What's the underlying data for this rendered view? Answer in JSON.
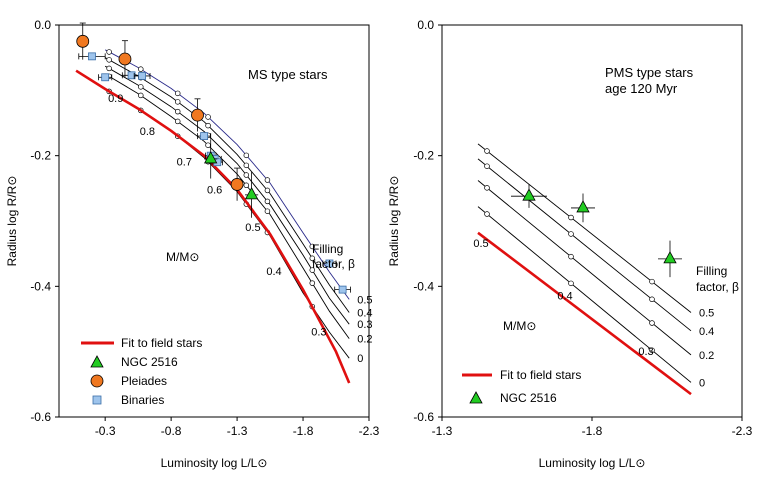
{
  "chart_data": [
    {
      "type": "line",
      "title": "MS type stars",
      "xlabel": "Luminosity log L/L⊙",
      "ylabel": "Radius log R/R⊙",
      "xlim": [
        0.05,
        -2.3
      ],
      "ylim": [
        -0.6,
        0.0
      ],
      "xticks": [
        -0.3,
        -0.8,
        -1.3,
        -1.8,
        -2.3
      ],
      "xtick_labels": [
        "-0.3",
        "-0.8",
        "-1.3",
        "-1.8",
        "-2.3"
      ],
      "yticks": [
        0.0,
        -0.2,
        -0.4,
        -0.6
      ],
      "ytick_labels": [
        "0.0",
        "-0.2",
        "-0.4",
        "-0.6"
      ],
      "fit_line": {
        "name": "Fit to field stars",
        "color": "#e01010",
        "x": [
          -0.08,
          -0.3,
          -0.55,
          -0.8,
          -1.05,
          -1.3,
          -1.55,
          -1.8,
          -2.05,
          -2.15
        ],
        "y": [
          -0.07,
          -0.098,
          -0.128,
          -0.162,
          -0.2,
          -0.252,
          -0.32,
          -0.405,
          -0.5,
          -0.548
        ]
      },
      "filling_lines": [
        {
          "label": "0",
          "color": "#000000",
          "x": [
            -0.3,
            -0.55,
            -0.8,
            -1.05,
            -1.3,
            -1.55,
            -1.8,
            -2.0,
            -2.15
          ],
          "y": [
            -0.098,
            -0.128,
            -0.162,
            -0.203,
            -0.255,
            -0.323,
            -0.41,
            -0.47,
            -0.51
          ]
        },
        {
          "label": "0.2",
          "color": "#000000",
          "x": [
            -0.3,
            -0.55,
            -0.8,
            -1.05,
            -1.3,
            -1.55,
            -1.8,
            -2.0,
            -2.15
          ],
          "y": [
            -0.075,
            -0.105,
            -0.14,
            -0.178,
            -0.228,
            -0.29,
            -0.372,
            -0.438,
            -0.48
          ]
        },
        {
          "label": "0.3",
          "color": "#000000",
          "x": [
            -0.3,
            -0.55,
            -0.8,
            -1.05,
            -1.3,
            -1.55,
            -1.8,
            -2.0,
            -2.15
          ],
          "y": [
            -0.063,
            -0.092,
            -0.125,
            -0.163,
            -0.212,
            -0.275,
            -0.352,
            -0.418,
            -0.458
          ]
        },
        {
          "label": "0.4",
          "color": "#000000",
          "x": [
            -0.3,
            -0.55,
            -0.8,
            -1.05,
            -1.3,
            -1.55,
            -1.8,
            -2.0,
            -2.15
          ],
          "y": [
            -0.05,
            -0.078,
            -0.11,
            -0.148,
            -0.198,
            -0.258,
            -0.335,
            -0.398,
            -0.44
          ]
        },
        {
          "label": "0.5",
          "color": "#2a2a8a",
          "x": [
            -0.3,
            -0.55,
            -0.8,
            -1.05,
            -1.3,
            -1.55,
            -1.8,
            -2.0,
            -2.15
          ],
          "y": [
            -0.038,
            -0.065,
            -0.097,
            -0.135,
            -0.183,
            -0.242,
            -0.318,
            -0.378,
            -0.42
          ]
        }
      ],
      "mass_markers": {
        "values": [
          "0.9",
          "0.8",
          "0.7",
          "0.6",
          "0.5",
          "0.4",
          "0.3"
        ],
        "x": [
          -0.38,
          -0.62,
          -0.9,
          -1.13,
          -1.42,
          -1.58,
          -1.92
        ],
        "y": [
          -0.118,
          -0.168,
          -0.215,
          -0.258,
          -0.315,
          -0.383,
          -0.475
        ]
      },
      "ngc2516": {
        "name": "NGC 2516",
        "color": "#22cc22",
        "x": [
          -1.1,
          -1.41
        ],
        "y": [
          -0.205,
          -0.26
        ],
        "yerr": [
          0.03,
          0.035
        ],
        "xerr": [
          0.05,
          0.05
        ]
      },
      "pleiades": {
        "name": "Pleiades",
        "color": "#f07820",
        "x": [
          -0.13,
          -0.45,
          -1.0,
          -1.3
        ],
        "y": [
          -0.025,
          -0.052,
          -0.138,
          -0.244
        ],
        "yerr": [
          0.028,
          0.028,
          0.025,
          0.025
        ]
      },
      "binaries": {
        "name": "Binaries",
        "color": "#9ec4ec",
        "x": [
          -0.2,
          -0.3,
          -0.5,
          -0.58,
          -1.05,
          -1.1,
          -1.13,
          -1.15,
          -2.0,
          -2.1
        ],
        "y": [
          -0.048,
          -0.08,
          -0.077,
          -0.078,
          -0.17,
          -0.2,
          -0.205,
          -0.21,
          -0.365,
          -0.405
        ],
        "xerr": [
          0.1,
          0.05,
          0.07,
          0.06,
          0.05,
          0.04,
          0.05,
          0.04,
          0.05,
          0.06
        ]
      },
      "annotations": {
        "mass_label": "M/M⊙",
        "filling_label_1": "Filling",
        "filling_label_2": "factor, β"
      },
      "legend": {
        "placement": "bottom-left",
        "entries": [
          "Fit to field stars",
          "NGC 2516",
          "Pleiades",
          "Binaries"
        ]
      }
    },
    {
      "type": "line",
      "title": "PMS type stars",
      "subtitle": "age 120 Myr",
      "xlabel": "Luminosity log L/L⊙",
      "ylabel": "Radius log R/R⊙",
      "xlim": [
        -1.3,
        -2.3
      ],
      "ylim": [
        -0.6,
        0.0
      ],
      "xticks": [
        -1.3,
        -1.8,
        -2.3
      ],
      "xtick_labels": [
        "-1.3",
        "-1.8",
        "-2.3"
      ],
      "yticks": [
        0.0,
        -0.2,
        -0.4,
        -0.6
      ],
      "ytick_labels": [
        "0.0",
        "-0.2",
        "-0.4",
        "-0.6"
      ],
      "fit_line": {
        "name": "Fit to field stars",
        "color": "#e01010",
        "x": [
          -1.42,
          -2.13
        ],
        "y": [
          -0.318,
          -0.565
        ]
      },
      "filling_lines": [
        {
          "label": "0",
          "x": [
            -1.42,
            -2.13
          ],
          "y": [
            -0.278,
            -0.547
          ]
        },
        {
          "label": "0.2",
          "x": [
            -1.42,
            -2.13
          ],
          "y": [
            -0.238,
            -0.505
          ]
        },
        {
          "label": "0.4",
          "x": [
            -1.42,
            -2.13
          ],
          "y": [
            -0.205,
            -0.468
          ]
        },
        {
          "label": "0.5",
          "x": [
            -1.42,
            -2.13
          ],
          "y": [
            -0.182,
            -0.44
          ]
        }
      ],
      "mass_markers": {
        "values": [
          "0.5",
          "0.4",
          "0.3"
        ],
        "x": [
          -1.43,
          -1.71,
          -1.98
        ],
        "y": [
          -0.34,
          -0.42,
          -0.505
        ]
      },
      "ngc2516": {
        "name": "NGC 2516",
        "color": "#22cc22",
        "x": [
          -1.59,
          -1.77,
          -2.06
        ],
        "y": [
          -0.262,
          -0.28,
          -0.358
        ],
        "yerr": [
          0.018,
          0.022,
          0.028
        ],
        "xerr": [
          0.06,
          0.04,
          0.04
        ]
      },
      "annotations": {
        "mass_label": "M/M⊙",
        "filling_label_1": "Filling",
        "filling_label_2": "factor, β"
      },
      "legend": {
        "placement": "bottom-left",
        "entries": [
          "Fit to field stars",
          "NGC 2516"
        ]
      }
    }
  ]
}
